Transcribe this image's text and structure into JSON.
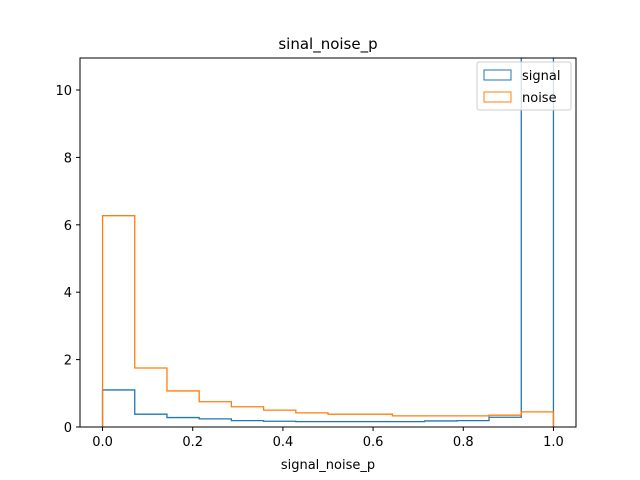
{
  "chart_data": {
    "type": "histogram-step",
    "title": "sinal_noise_p",
    "xlabel": "signal_noise_p",
    "ylabel": "",
    "xlim": [
      -0.05,
      1.05
    ],
    "ylim": [
      0,
      10.95
    ],
    "x_ticks": [
      0.0,
      0.2,
      0.4,
      0.6,
      0.8,
      1.0
    ],
    "x_tick_labels": [
      "0.0",
      "0.2",
      "0.4",
      "0.6",
      "0.8",
      "1.0"
    ],
    "y_ticks": [
      0,
      2,
      4,
      6,
      8,
      10
    ],
    "y_tick_labels": [
      "0",
      "2",
      "4",
      "6",
      "8",
      "10"
    ],
    "bin_edges": [
      0.0,
      0.0714,
      0.1429,
      0.2143,
      0.2857,
      0.3571,
      0.4286,
      0.5,
      0.5714,
      0.6429,
      0.7143,
      0.7857,
      0.8571,
      0.9286,
      1.0
    ],
    "series": [
      {
        "name": "signal",
        "color": "#1f77b4",
        "values": [
          1.1,
          0.38,
          0.28,
          0.24,
          0.19,
          0.17,
          0.16,
          0.16,
          0.16,
          0.16,
          0.18,
          0.19,
          0.29,
          11.0
        ]
      },
      {
        "name": "noise",
        "color": "#ff7f0e",
        "values": [
          6.27,
          1.75,
          1.07,
          0.75,
          0.6,
          0.5,
          0.42,
          0.38,
          0.38,
          0.33,
          0.33,
          0.33,
          0.35,
          0.45
        ]
      }
    ],
    "legend_position": "top-right",
    "grid": false
  }
}
